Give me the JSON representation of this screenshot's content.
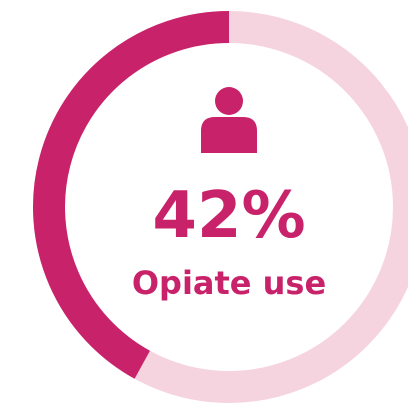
{
  "chart_data": {
    "type": "pie",
    "style": "donut",
    "values": [
      42
    ],
    "unit": "%",
    "label": "Opiate use",
    "value_text": "42%",
    "icon": "person-icon",
    "colors": {
      "filled": "#c8236a",
      "remainder": "#f5d3df",
      "text": "#c8236a",
      "icon": "#c8236a"
    }
  }
}
